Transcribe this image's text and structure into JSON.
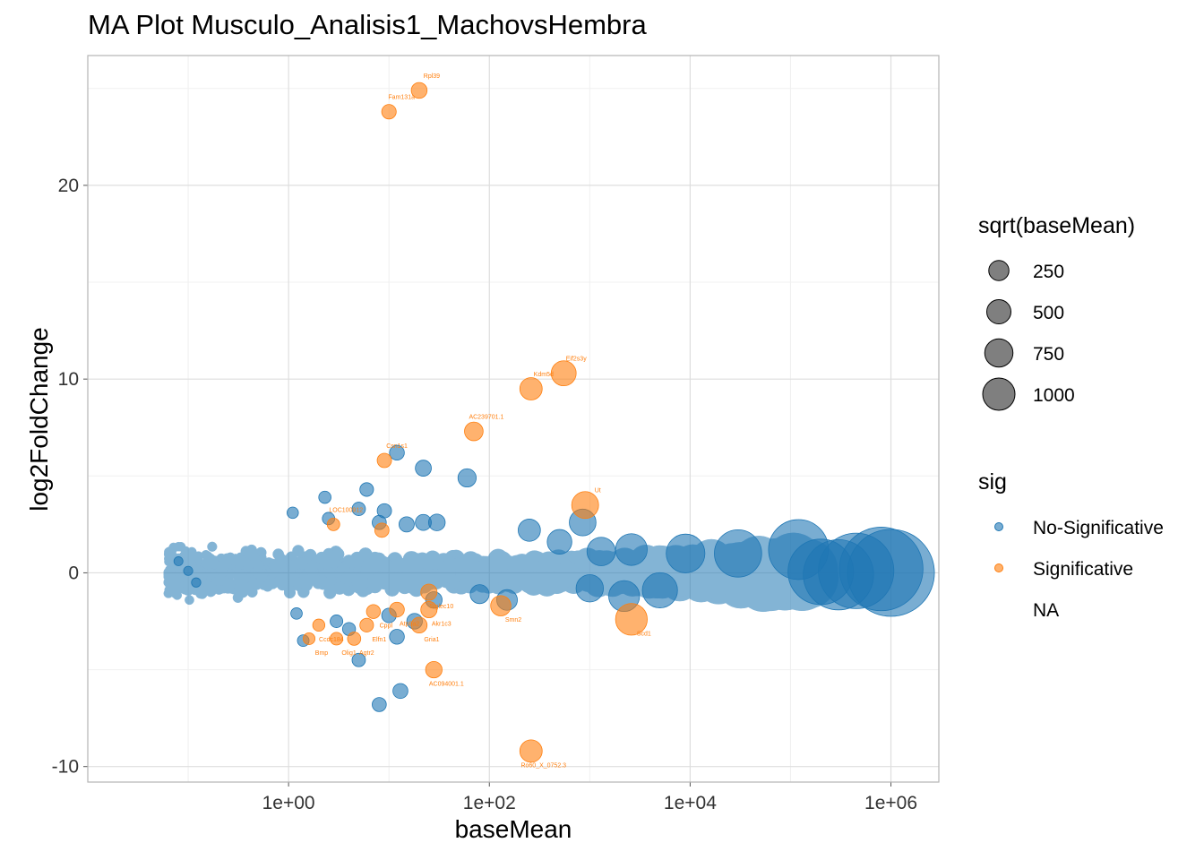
{
  "chart_data": {
    "type": "scatter",
    "title": "MA Plot Musculo_Analisis1_MachovsHembra",
    "xlabel": "baseMean",
    "ylabel": "log2FoldChange",
    "x_scale": "log10",
    "xlim": [
      0.01,
      3000000
    ],
    "ylim": [
      -10.8,
      26.7
    ],
    "x_ticks": [
      {
        "value": 1,
        "label": "1e+00"
      },
      {
        "value": 100,
        "label": "1e+02"
      },
      {
        "value": 10000,
        "label": "1e+04"
      },
      {
        "value": 1000000,
        "label": "1e+06"
      }
    ],
    "y_ticks": [
      {
        "value": -10,
        "label": "-10"
      },
      {
        "value": 0,
        "label": "0"
      },
      {
        "value": 10,
        "label": "10"
      },
      {
        "value": 20,
        "label": "20"
      }
    ],
    "grid": true,
    "legend_position": "right",
    "colors": {
      "No-Significative": "#1f77b4",
      "Significative": "#ff7f0e"
    },
    "legend_size": {
      "title": "sqrt(baseMean)",
      "entries": [
        {
          "label": "250",
          "value": 250
        },
        {
          "label": "500",
          "value": 500
        },
        {
          "label": "750",
          "value": 750
        },
        {
          "label": "1000",
          "value": 1000
        }
      ]
    },
    "legend_color": {
      "title": "sig",
      "entries": [
        {
          "label": "No-Significative",
          "color": "#1f77b4"
        },
        {
          "label": "Significative",
          "color": "#ff7f0e"
        },
        {
          "label": "NA",
          "color": null
        }
      ]
    },
    "series": [
      {
        "name": "No-Significative",
        "color": "#1f77b4",
        "points": [
          [
            12,
            6.2
          ],
          [
            22,
            5.4
          ],
          [
            60,
            4.9
          ],
          [
            6,
            4.3
          ],
          [
            2.3,
            3.9
          ],
          [
            5,
            3.3
          ],
          [
            9,
            3.2
          ],
          [
            1.1,
            3.1
          ],
          [
            2.5,
            2.8
          ],
          [
            8,
            2.6
          ],
          [
            15,
            2.5
          ],
          [
            22,
            2.6
          ],
          [
            30,
            2.6
          ],
          [
            250,
            2.2
          ],
          [
            500,
            1.6
          ],
          [
            850,
            2.6
          ],
          [
            1300,
            1.1
          ],
          [
            2600,
            1.2
          ],
          [
            9000,
            1.0
          ],
          [
            30000,
            1.0
          ],
          [
            120000,
            1.2
          ],
          [
            1000,
            -0.8
          ],
          [
            2200,
            -1.2
          ],
          [
            5000,
            -0.9
          ],
          [
            1.2,
            -2.1
          ],
          [
            3,
            -2.5
          ],
          [
            4,
            -2.9
          ],
          [
            10,
            -2.2
          ],
          [
            18,
            -2.5
          ],
          [
            1.4,
            -3.5
          ],
          [
            5,
            -4.5
          ],
          [
            12,
            -3.3
          ],
          [
            8,
            -6.8
          ],
          [
            13,
            -6.1
          ],
          [
            28,
            -1.4
          ],
          [
            80,
            -1.1
          ],
          [
            150,
            -1.4
          ],
          [
            0.1,
            0.1
          ],
          [
            0.08,
            0.6
          ],
          [
            0.12,
            -0.5
          ],
          [
            200000,
            0.05
          ],
          [
            300000,
            -0.1
          ],
          [
            450000,
            0.1
          ],
          [
            800000,
            0.2
          ],
          [
            1000000,
            0.0
          ]
        ]
      },
      {
        "name": "Significative",
        "color": "#ff7f0e",
        "points": [
          {
            "x": 20,
            "y": 24.9,
            "label": "Rpl39"
          },
          {
            "x": 10,
            "y": 23.8,
            "label": "Fam131a"
          },
          {
            "x": 550,
            "y": 10.3,
            "label": "Eif2s3y"
          },
          {
            "x": 260,
            "y": 9.5,
            "label": "Kdm5d"
          },
          {
            "x": 70,
            "y": 7.3,
            "label": "AC239701.1"
          },
          {
            "x": 9,
            "y": 5.8,
            "label": "Csn1s1"
          },
          {
            "x": 900,
            "y": 3.5,
            "label": "Ut"
          },
          {
            "x": 2.8,
            "y": 2.5,
            "label": "LOC100912"
          },
          {
            "x": 8.5,
            "y": 2.2,
            "label": ""
          },
          {
            "x": 2600,
            "y": -2.4,
            "label": "Scd1"
          },
          {
            "x": 130,
            "y": -1.7,
            "label": "Smn2"
          },
          {
            "x": 28,
            "y": -5.0,
            "label": "AC094001.1"
          },
          {
            "x": 260,
            "y": -9.2,
            "label": "Ro60_X_0752.3"
          },
          {
            "x": 1.6,
            "y": -3.4,
            "label": "Bmp"
          },
          {
            "x": 3,
            "y": -3.4,
            "label": "Olig1"
          },
          {
            "x": 4.5,
            "y": -3.4,
            "label": "Agtr2"
          },
          {
            "x": 6,
            "y": -2.7,
            "label": "Elfn1"
          },
          {
            "x": 7,
            "y": -2.0,
            "label": "Cppl"
          },
          {
            "x": 20,
            "y": -2.7,
            "label": "Gria1"
          },
          {
            "x": 25,
            "y": -1.9,
            "label": "Akr1c3"
          },
          {
            "x": 25,
            "y": -1.0,
            "label": "Siglec10"
          },
          {
            "x": 2,
            "y": -2.7,
            "label": "Ccdc184"
          },
          {
            "x": 12,
            "y": -1.9,
            "label": "Atp8a2"
          }
        ]
      }
    ]
  }
}
